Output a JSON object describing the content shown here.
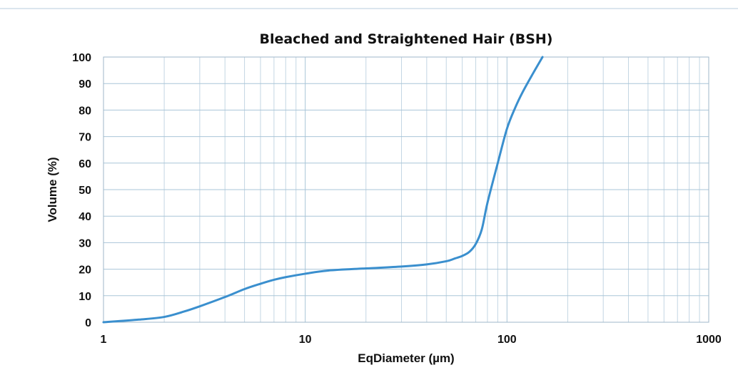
{
  "chart_data": {
    "type": "line",
    "title": "Bleached and Straightened Hair (BSH)",
    "xlabel": "EqDiameter (µm)",
    "ylabel": "Volume (%)",
    "x_scale": "log",
    "xlim": [
      1,
      1000
    ],
    "ylim": [
      0,
      100
    ],
    "x_ticks": [
      "1",
      "10",
      "100",
      "1000"
    ],
    "y_ticks": [
      "0",
      "10",
      "20",
      "30",
      "40",
      "50",
      "60",
      "70",
      "80",
      "90",
      "100"
    ],
    "grid": true,
    "legend": "none",
    "series": [
      {
        "color": "#3a8fce",
        "x": [
          1,
          1.5,
          2,
          2.5,
          3,
          4,
          5,
          6,
          7,
          8,
          10,
          13,
          20,
          30,
          40,
          50,
          55,
          60,
          65,
          70,
          75,
          80,
          90,
          100,
          110,
          120,
          135,
          150
        ],
        "y": [
          0,
          1,
          2,
          4,
          6,
          9.5,
          12.5,
          14.5,
          16,
          17,
          18.3,
          19.5,
          20.3,
          21,
          21.8,
          23,
          24,
          25,
          26.5,
          29.5,
          35,
          45,
          60,
          73,
          81,
          87,
          94,
          100
        ]
      }
    ]
  }
}
